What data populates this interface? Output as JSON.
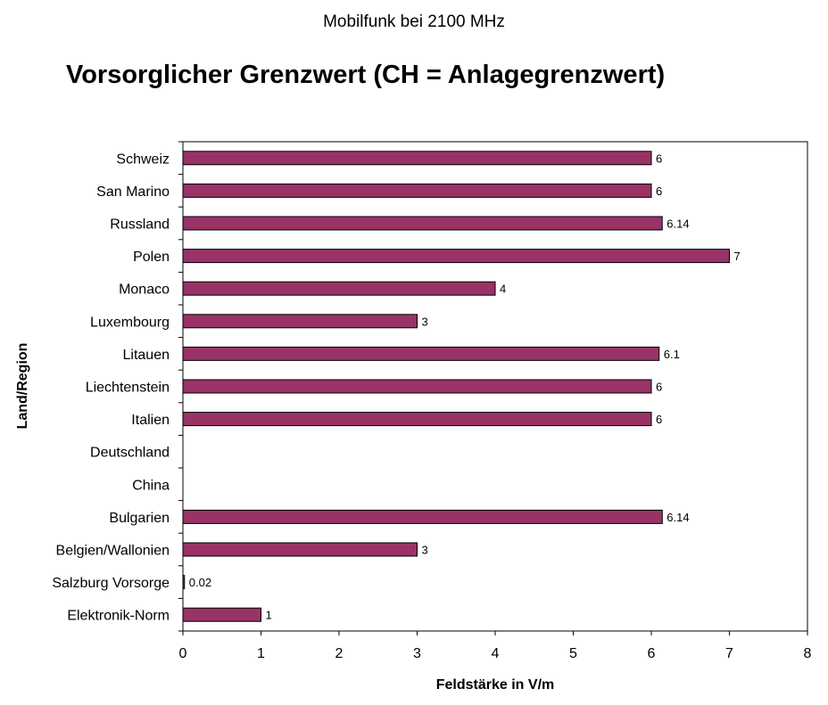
{
  "subtitle": "Mobilfunk bei 2100 MHz",
  "title": "Vorsorglicher Grenzwert (CH = Anlagegrenzwert)",
  "colors": {
    "bar": "#993366",
    "bar_stroke": "#000000"
  },
  "chart_data": {
    "type": "bar",
    "orientation": "horizontal",
    "categories": [
      "Schweiz",
      "San Marino",
      "Russland",
      "Polen",
      "Monaco",
      "Luxembourg",
      "Litauen",
      "Liechtenstein",
      "Italien",
      "Deutschland",
      "China",
      "Bulgarien",
      "Belgien/Wallonien",
      "Salzburg Vorsorge",
      "Elektronik-Norm"
    ],
    "values": [
      6,
      6,
      6.14,
      7,
      4,
      3,
      6.1,
      6,
      6,
      null,
      null,
      6.14,
      3,
      0.02,
      1
    ],
    "value_labels": [
      "6",
      "6",
      "6.14",
      "7",
      "4",
      "3",
      "6.1",
      "6",
      "6",
      "",
      "",
      "6.14",
      "3",
      "0.02",
      "1"
    ],
    "xlabel": "Feldstärke in V/m",
    "ylabel": "Land/Region",
    "xlim": [
      0,
      8
    ],
    "xticks": [
      0,
      1,
      2,
      3,
      4,
      5,
      6,
      7,
      8
    ],
    "grid": false,
    "legend": "none"
  }
}
